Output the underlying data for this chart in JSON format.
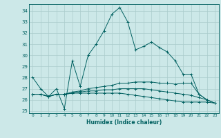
{
  "title": "",
  "xlabel": "Humidex (Indice chaleur)",
  "bg_color": "#cce8e8",
  "grid_color": "#aacccc",
  "line_color": "#006060",
  "xlim": [
    -0.5,
    23.5
  ],
  "ylim": [
    24.8,
    34.6
  ],
  "yticks": [
    25,
    26,
    27,
    28,
    29,
    30,
    31,
    32,
    33,
    34
  ],
  "xticks": [
    0,
    1,
    2,
    3,
    4,
    5,
    6,
    7,
    8,
    9,
    10,
    11,
    12,
    13,
    14,
    15,
    16,
    17,
    18,
    19,
    20,
    21,
    22,
    23
  ],
  "lines": [
    [
      28.0,
      27.0,
      26.3,
      27.0,
      25.2,
      29.5,
      27.2,
      30.0,
      31.0,
      32.2,
      33.7,
      34.3,
      33.0,
      30.5,
      30.8,
      31.2,
      30.7,
      30.3,
      29.5,
      28.3,
      28.3,
      26.5,
      26.0,
      25.7
    ],
    [
      26.5,
      26.5,
      26.3,
      26.5,
      26.5,
      26.7,
      26.8,
      27.0,
      27.1,
      27.2,
      27.3,
      27.5,
      27.5,
      27.6,
      27.6,
      27.6,
      27.5,
      27.5,
      27.4,
      27.5,
      27.5,
      26.5,
      26.0,
      25.7
    ],
    [
      26.5,
      26.5,
      26.3,
      26.5,
      26.5,
      26.6,
      26.7,
      26.8,
      26.8,
      26.9,
      26.9,
      27.0,
      27.0,
      27.0,
      27.0,
      26.9,
      26.8,
      26.7,
      26.6,
      26.5,
      26.4,
      26.2,
      26.0,
      25.7
    ],
    [
      26.5,
      26.5,
      26.3,
      26.5,
      26.5,
      26.6,
      26.6,
      26.6,
      26.6,
      26.6,
      26.6,
      26.6,
      26.5,
      26.4,
      26.3,
      26.2,
      26.1,
      26.0,
      25.9,
      25.8,
      25.8,
      25.8,
      25.8,
      25.7
    ]
  ]
}
